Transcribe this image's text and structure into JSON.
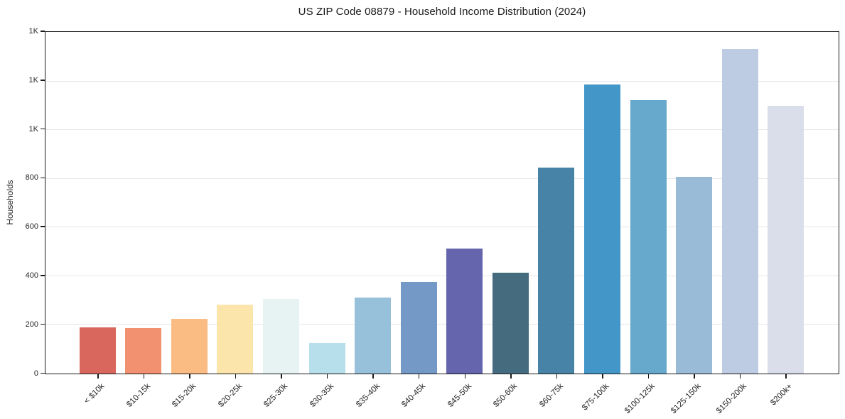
{
  "chart_data": {
    "type": "bar",
    "title": "US ZIP Code 08879 - Household Income Distribution (2024)",
    "xlabel": "",
    "ylabel": "Households",
    "ylim": [
      0,
      1400
    ],
    "grid": true,
    "legend": "none",
    "y_ticks": [
      {
        "value": 0,
        "label": "0"
      },
      {
        "value": 200,
        "label": "200"
      },
      {
        "value": 400,
        "label": "400"
      },
      {
        "value": 600,
        "label": "600"
      },
      {
        "value": 800,
        "label": "800"
      },
      {
        "value": 1000,
        "label": "1K"
      },
      {
        "value": 1200,
        "label": "1K"
      },
      {
        "value": 1400,
        "label": "1K"
      }
    ],
    "categories": [
      "< $10k",
      "$10-15k",
      "$15-20k",
      "$20-25k",
      "$25-30k",
      "$30-35k",
      "$35-40k",
      "$40-45k",
      "$45-50k",
      "$50-60k",
      "$60-75k",
      "$75-100k",
      "$100-125k",
      "$125-150k",
      "$150-200k",
      "$200k+"
    ],
    "values": [
      190,
      185,
      225,
      282,
      305,
      126,
      312,
      375,
      511,
      413,
      845,
      1185,
      1120,
      806,
      1330,
      1098
    ],
    "bar_colors": [
      "#d75d54",
      "#f18a67",
      "#fab87a",
      "#fce3a5",
      "#e6f2f2",
      "#b3dcea",
      "#91bcd8",
      "#6b93c4",
      "#5a5ba8",
      "#386276",
      "#3a7ba1",
      "#3690c5",
      "#5ca4ca",
      "#94b7d5",
      "#b9c9e0",
      "#d8dbe9"
    ]
  },
  "colors": {
    "background": "#ffffff",
    "spine": "#1a1a1a",
    "grid": "#e7e7e9",
    "tick_text": "#262626",
    "title_text": "#1a1a1a"
  }
}
